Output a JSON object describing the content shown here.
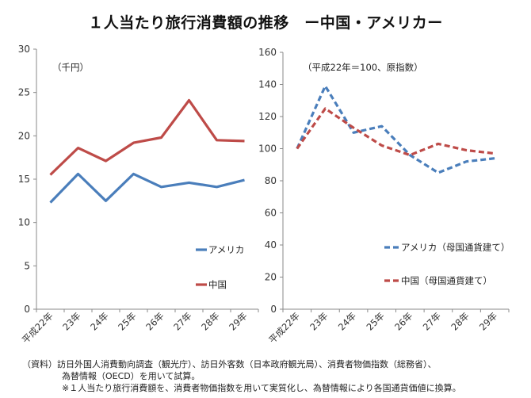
{
  "title": "１人当たり旅行消費額の推移　ー中国・アメリカー",
  "chart_data": [
    {
      "type": "line",
      "unit_label": "（千円）",
      "categories": [
        "平成22年",
        "23年",
        "24年",
        "25年",
        "26年",
        "27年",
        "28年",
        "29年"
      ],
      "ylim": [
        0,
        30
      ],
      "yticks": [
        0,
        5,
        10,
        15,
        20,
        25,
        30
      ],
      "grid": false,
      "legend_position": "lower-right",
      "series": [
        {
          "name": "アメリカ",
          "color": "#4A7EBB",
          "style": "solid",
          "values": [
            12.3,
            15.6,
            12.5,
            15.6,
            14.1,
            14.6,
            14.1,
            14.9
          ]
        },
        {
          "name": "中国",
          "color": "#BE4B48",
          "style": "solid",
          "values": [
            15.5,
            18.6,
            17.1,
            19.2,
            19.8,
            24.1,
            19.5,
            19.4
          ]
        }
      ]
    },
    {
      "type": "line",
      "unit_label": "（平成22年＝100、原指数）",
      "categories": [
        "平成22年",
        "23年",
        "24年",
        "25年",
        "26年",
        "27年",
        "28年",
        "29年"
      ],
      "ylim": [
        0,
        160
      ],
      "yticks": [
        0,
        20,
        40,
        60,
        80,
        100,
        120,
        140,
        160
      ],
      "grid": false,
      "legend_position": "lower-right",
      "series": [
        {
          "name": "アメリカ（母国通貨建て）",
          "color": "#4A7EBB",
          "style": "dashed",
          "values": [
            100,
            139,
            110,
            114,
            96,
            85,
            92,
            94
          ]
        },
        {
          "name": "中国（母国通貨建て）",
          "color": "#BE4B48",
          "style": "dashed",
          "values": [
            100,
            125,
            113,
            102,
            96,
            103,
            99,
            97
          ]
        }
      ]
    }
  ],
  "notes": {
    "line1": "（資料）訪日外国人消費動向調査（観光庁）、訪日外客数（日本政府観光局）、消費者物価指数（総務省）、",
    "line2": "為替情報（OECD）を用いて試算。",
    "line3": "※１人当たり旅行消費額を、消費者物価指数を用いて実質化し、為替情報により各国通貨価値に換算。"
  }
}
